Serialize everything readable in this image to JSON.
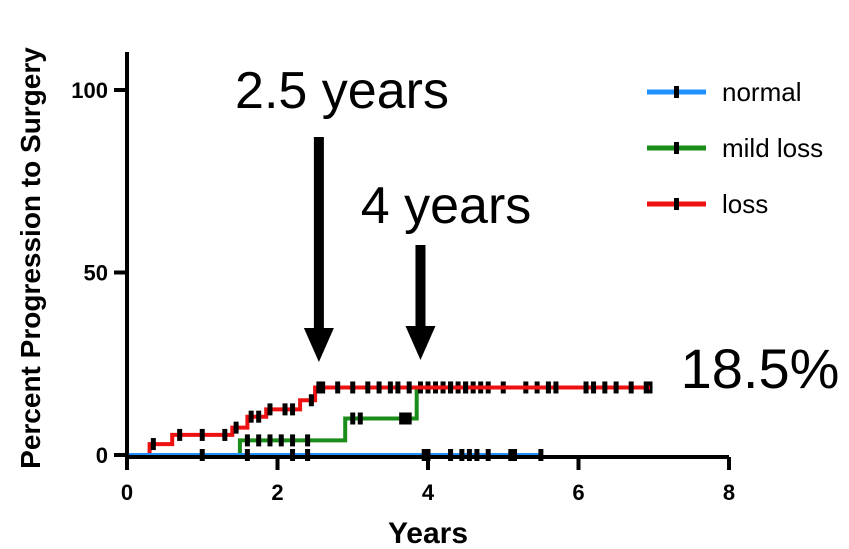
{
  "chart_data": {
    "type": "line",
    "title": "",
    "xlabel": "Years",
    "ylabel": "Percent Progression to Surgery",
    "xlim": [
      0,
      8
    ],
    "ylim": [
      0,
      100
    ],
    "xticks": [
      0,
      2,
      4,
      6,
      8
    ],
    "yticks": [
      0,
      50,
      100
    ],
    "grid": false,
    "legend_position": "top-right",
    "series": [
      {
        "name": "normal",
        "color": "#1e90ff",
        "steps": [
          [
            0,
            0
          ],
          [
            5.5,
            0
          ]
        ],
        "censored": [
          1.0,
          1.6,
          2.2,
          2.4,
          3.95,
          4.0,
          4.3,
          4.45,
          4.55,
          4.65,
          4.8,
          5.1,
          5.15,
          5.5
        ]
      },
      {
        "name": "mild loss",
        "color": "#1a8c1a",
        "steps": [
          [
            1.5,
            0
          ],
          [
            1.5,
            4
          ],
          [
            2.9,
            4
          ],
          [
            2.9,
            10
          ],
          [
            3.85,
            10
          ],
          [
            3.85,
            18.5
          ],
          [
            6.95,
            18.5
          ]
        ],
        "censored": [
          1.6,
          1.75,
          1.9,
          2.05,
          2.2,
          2.4,
          3.0,
          3.1,
          3.65,
          3.7,
          3.75,
          3.9,
          4.0,
          4.1,
          4.2,
          4.3,
          4.4,
          4.5,
          4.6,
          4.7,
          4.8,
          5.0,
          5.3,
          5.45,
          6.95
        ]
      },
      {
        "name": "loss",
        "color": "#ee1111",
        "steps": [
          [
            0.3,
            0
          ],
          [
            0.3,
            3
          ],
          [
            0.6,
            3
          ],
          [
            0.6,
            5.5
          ],
          [
            1.4,
            5.5
          ],
          [
            1.4,
            7.5
          ],
          [
            1.6,
            7.5
          ],
          [
            1.6,
            10.5
          ],
          [
            1.85,
            10.5
          ],
          [
            1.85,
            12.5
          ],
          [
            2.3,
            12.5
          ],
          [
            2.3,
            15
          ],
          [
            2.5,
            15
          ],
          [
            2.5,
            18.5
          ],
          [
            6.95,
            18.5
          ]
        ],
        "censored": [
          0.35,
          0.7,
          1.0,
          1.3,
          1.45,
          1.65,
          1.75,
          1.9,
          2.1,
          2.2,
          2.45,
          2.55,
          2.6,
          2.8,
          3.0,
          3.2,
          3.35,
          3.5,
          3.6,
          3.75,
          4.3,
          4.5,
          5.6,
          5.7,
          6.1,
          6.2,
          6.35,
          6.5,
          6.7,
          6.9
        ]
      }
    ],
    "annotations": [
      {
        "text": "2.5 years",
        "arrow_x": 2.55
      },
      {
        "text": "4 years",
        "arrow_x": 3.9
      },
      {
        "text": "18.5%"
      }
    ]
  }
}
